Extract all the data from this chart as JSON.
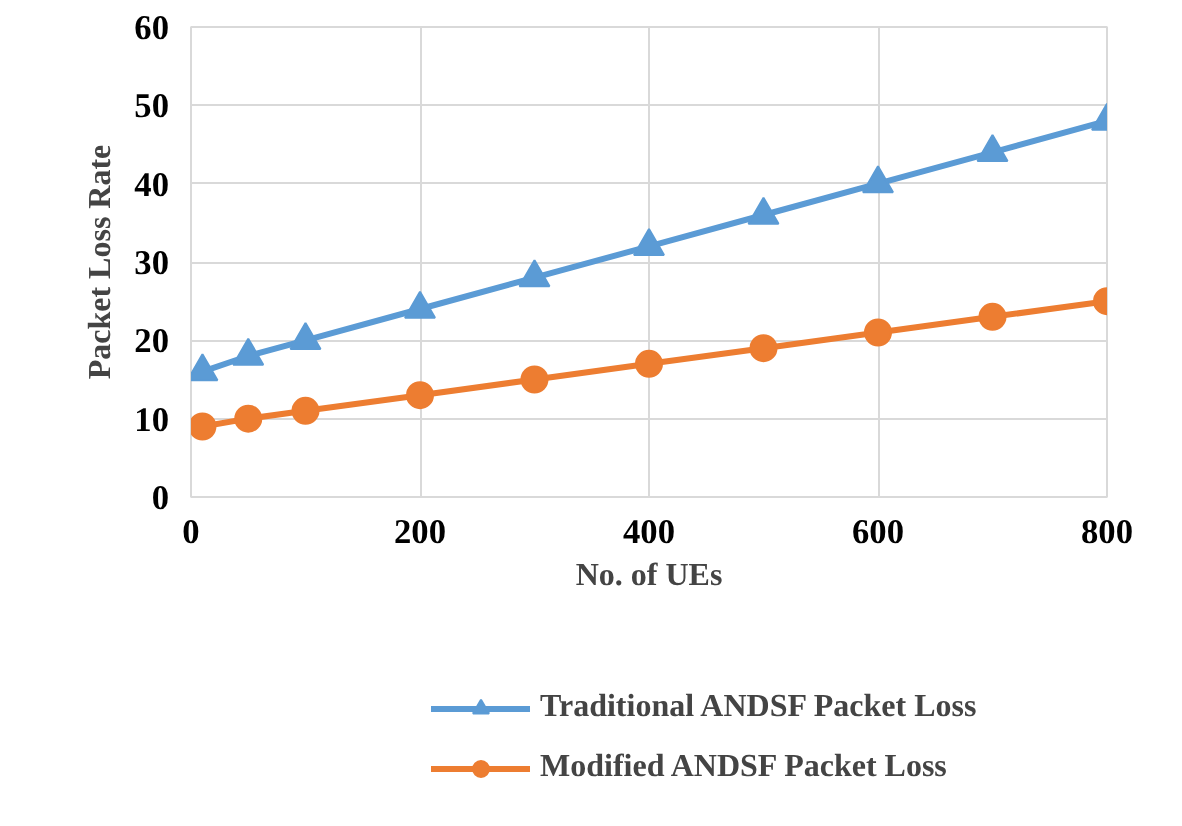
{
  "chart_data": {
    "type": "line",
    "xlabel": "No. of UEs",
    "ylabel": "Packet Loss Rate",
    "x": [
      10,
      50,
      100,
      200,
      300,
      400,
      500,
      600,
      700,
      800
    ],
    "series": [
      {
        "name": "Traditional ANDSF Packet Loss",
        "color": "#5b9bd5",
        "marker": "triangle",
        "values": [
          16,
          18,
          20,
          24,
          28,
          32,
          36,
          40,
          44,
          48
        ]
      },
      {
        "name": "Modified ANDSF Packet Loss",
        "color": "#ed7d31",
        "marker": "circle",
        "values": [
          9,
          10,
          11,
          13,
          15,
          17,
          19,
          21,
          23,
          25
        ]
      }
    ],
    "xlim": [
      0,
      800
    ],
    "ylim": [
      0,
      60
    ],
    "xticks": [
      0,
      200,
      400,
      600,
      800
    ],
    "yticks": [
      0,
      10,
      20,
      30,
      40,
      50,
      60
    ],
    "grid": true,
    "legend": "bottom",
    "line_style": "solid"
  }
}
